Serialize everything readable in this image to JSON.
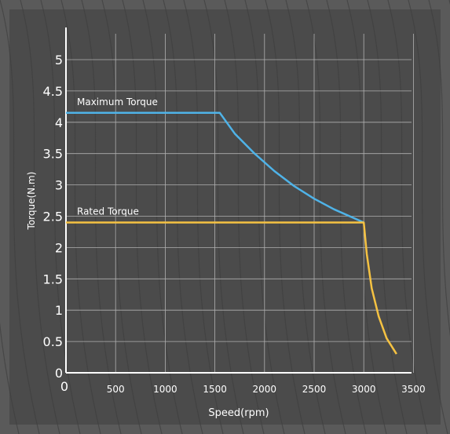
{
  "chart_data": {
    "type": "line",
    "xlabel": "Speed(rpm)",
    "ylabel": "Torque(N.m)",
    "xlim": [
      0,
      3500
    ],
    "ylim": [
      0,
      5.5
    ],
    "x_ticks": [
      "0",
      "500",
      "1000",
      "1500",
      "2000",
      "2500",
      "3000",
      "3500"
    ],
    "y_ticks": [
      "0",
      "0.5",
      "1",
      "1.5",
      "2",
      "2.5",
      "3",
      "3.5",
      "4",
      "4.5",
      "5"
    ],
    "grid": true,
    "series": [
      {
        "name": "Maximum Torque",
        "color": "#4fb3e8",
        "x": [
          0,
          1550,
          1700,
          1900,
          2100,
          2300,
          2500,
          2700,
          2900,
          3000
        ],
        "y": [
          4.15,
          4.15,
          3.82,
          3.5,
          3.22,
          2.98,
          2.78,
          2.61,
          2.47,
          2.4
        ]
      },
      {
        "name": "Rated Torque",
        "color": "#f5c242",
        "x": [
          0,
          3000,
          3030,
          3080,
          3150,
          3230,
          3330
        ],
        "y": [
          2.4,
          2.4,
          1.9,
          1.35,
          0.9,
          0.55,
          0.3
        ]
      }
    ]
  },
  "colors": {
    "background": "#4b4b4b",
    "outer": "#5a5a5a",
    "grid": "#b0b0b0",
    "axis": "#ffffff"
  }
}
